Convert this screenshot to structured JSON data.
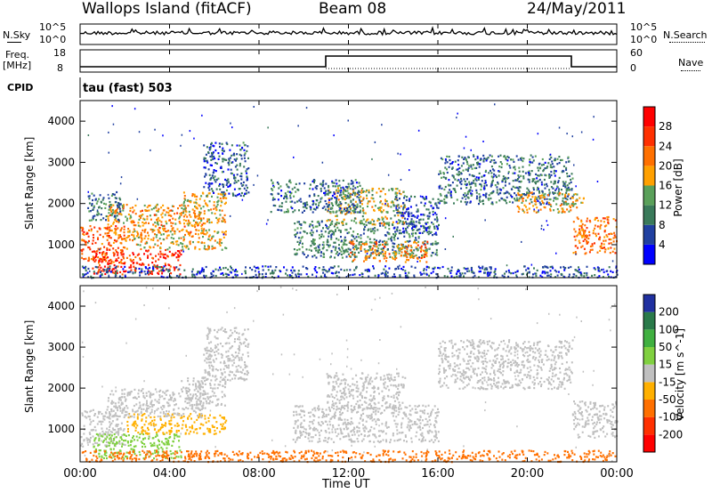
{
  "header": {
    "station": "Wallops Island (fitACF)",
    "beam": "Beam 08",
    "date": "24/May/2011"
  },
  "nsky_panel": {
    "left_label": "N.Sky",
    "right_label": "N.Search",
    "left_ticks": [
      "10^5",
      "10^0"
    ],
    "right_ticks": [
      "10^5",
      "10^0"
    ]
  },
  "freq_panel": {
    "left_label_1": "Freq.",
    "left_label_2": "[MHz]",
    "right_label": "Nave",
    "left_ticks": [
      "18",
      "8"
    ],
    "right_ticks": [
      "60",
      "0"
    ]
  },
  "cpid": {
    "label": "CPID",
    "value": "tau (fast) 503"
  },
  "time_axis": {
    "ticks": [
      "00:00",
      "04:00",
      "08:00",
      "12:00",
      "16:00",
      "20:00",
      "00:00"
    ],
    "title": "Time UT"
  },
  "chart_data": [
    {
      "type": "heatmap",
      "title": "",
      "xlabel": "Time UT",
      "ylabel": "Slant Range [km]",
      "x_range_hours": [
        0,
        24
      ],
      "y_range_km": [
        200,
        4500
      ],
      "yticks": [
        1000,
        2000,
        3000,
        4000
      ],
      "colorbar": {
        "label": "Power [dB]",
        "ticks": [
          "4",
          "8",
          "12",
          "16",
          "20",
          "24",
          "28"
        ],
        "range": [
          0,
          30
        ],
        "colors": [
          "#0000ff",
          "#2040a0",
          "#3a7a5a",
          "#5aa05a",
          "#ffa000",
          "#ff7000",
          "#ff3000",
          "#ff0000"
        ]
      },
      "regions": [
        {
          "t0": 0.0,
          "t1": 2.0,
          "r0": 600,
          "r1": 1500,
          "v": 22
        },
        {
          "t0": 0.5,
          "t1": 4.5,
          "r0": 300,
          "r1": 900,
          "v": 25
        },
        {
          "t0": 2.0,
          "t1": 6.5,
          "r0": 900,
          "r1": 1400,
          "v": 17
        },
        {
          "t0": 1.2,
          "t1": 5.5,
          "r0": 1300,
          "r1": 2000,
          "v": 18
        },
        {
          "t0": 0.3,
          "t1": 1.8,
          "r0": 1600,
          "r1": 2300,
          "v": 9
        },
        {
          "t0": 4.5,
          "t1": 6.5,
          "r0": 1500,
          "r1": 2300,
          "v": 17
        },
        {
          "t0": 5.5,
          "t1": 7.5,
          "r0": 2200,
          "r1": 3500,
          "v": 7
        },
        {
          "t0": 0.0,
          "t1": 24.0,
          "r0": 220,
          "r1": 500,
          "v": 6
        },
        {
          "t0": 9.5,
          "t1": 16.0,
          "r0": 700,
          "r1": 1600,
          "v": 10
        },
        {
          "t0": 12.0,
          "t1": 15.5,
          "r0": 600,
          "r1": 1100,
          "v": 19
        },
        {
          "t0": 11.0,
          "t1": 14.5,
          "r0": 1500,
          "r1": 2400,
          "v": 15
        },
        {
          "t0": 8.5,
          "t1": 12.5,
          "r0": 1800,
          "r1": 2600,
          "v": 8
        },
        {
          "t0": 16.0,
          "t1": 22.0,
          "r0": 2000,
          "r1": 3200,
          "v": 8
        },
        {
          "t0": 19.5,
          "t1": 22.5,
          "r0": 1800,
          "r1": 2300,
          "v": 17
        },
        {
          "t0": 22.0,
          "t1": 24.0,
          "r0": 800,
          "r1": 1700,
          "v": 20
        },
        {
          "t0": 14.0,
          "t1": 16.0,
          "r0": 1300,
          "r1": 2200,
          "v": 6
        }
      ]
    },
    {
      "type": "heatmap",
      "title": "",
      "xlabel": "Time UT",
      "ylabel": "Slant Range [km]",
      "x_range_hours": [
        0,
        24
      ],
      "y_range_km": [
        200,
        4500
      ],
      "yticks": [
        1000,
        2000,
        3000,
        4000
      ],
      "colorbar": {
        "label": "Velocity [m s^-1]",
        "ticks": [
          "200",
          "100",
          "50",
          "15",
          "-15",
          "-50",
          "-100",
          "-200"
        ],
        "colors": [
          "#2030a0",
          "#2a7a4a",
          "#40b040",
          "#80d040",
          "#c0c0c0",
          "#ffb000",
          "#ff7000",
          "#ff3000",
          "#ff0000"
        ]
      },
      "regions": [
        {
          "t0": 0.0,
          "t1": 2.0,
          "r0": 600,
          "r1": 1500,
          "v": -10
        },
        {
          "t0": 0.5,
          "t1": 4.5,
          "r0": 300,
          "r1": 900,
          "v": 30
        },
        {
          "t0": 2.0,
          "t1": 6.5,
          "r0": 900,
          "r1": 1400,
          "v": -40
        },
        {
          "t0": 1.2,
          "t1": 5.5,
          "r0": 1300,
          "r1": 2000,
          "v": 0
        },
        {
          "t0": 4.5,
          "t1": 6.5,
          "r0": 1500,
          "r1": 2300,
          "v": 0
        },
        {
          "t0": 5.5,
          "t1": 7.5,
          "r0": 2200,
          "r1": 3500,
          "v": 0
        },
        {
          "t0": 0.0,
          "t1": 24.0,
          "r0": 220,
          "r1": 500,
          "v": -60
        },
        {
          "t0": 9.5,
          "t1": 16.0,
          "r0": 700,
          "r1": 1600,
          "v": 5
        },
        {
          "t0": 11.0,
          "t1": 14.5,
          "r0": 1500,
          "r1": 2400,
          "v": 0
        },
        {
          "t0": 16.0,
          "t1": 22.0,
          "r0": 2000,
          "r1": 3200,
          "v": 0
        },
        {
          "t0": 22.0,
          "t1": 24.0,
          "r0": 800,
          "r1": 1700,
          "v": 0
        }
      ]
    }
  ]
}
